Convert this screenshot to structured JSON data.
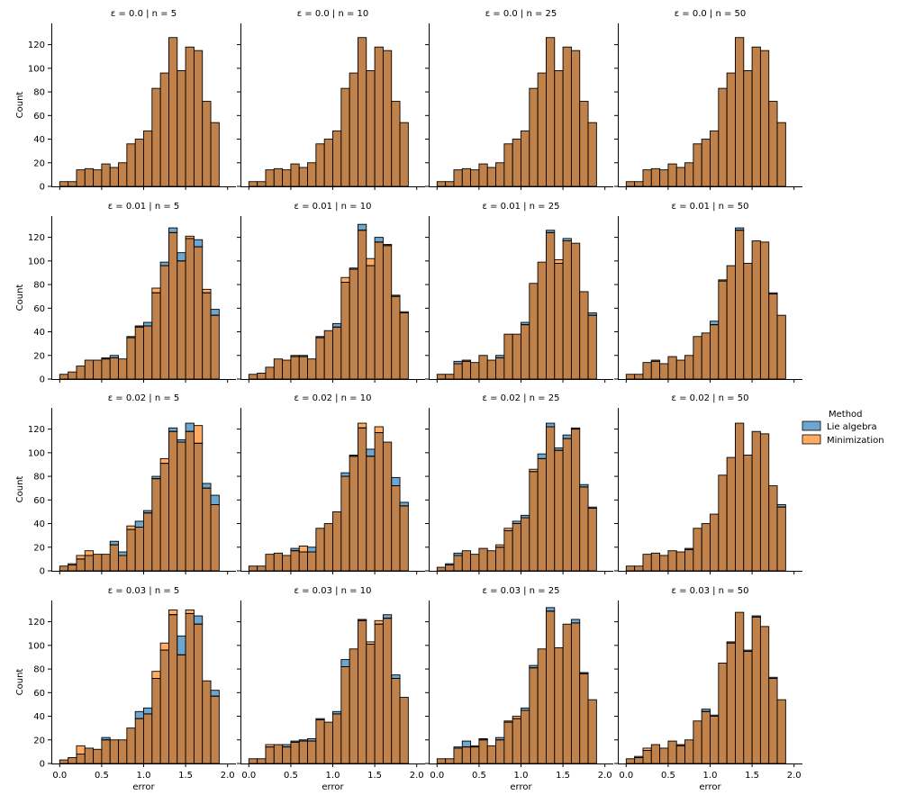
{
  "chart_data": {
    "type": "bar",
    "layout": "facet-grid",
    "rows": 4,
    "cols": 4,
    "xlim": [
      -0.1,
      2.1
    ],
    "ylim": [
      0,
      138
    ],
    "xticks": [
      "0.0",
      "0.5",
      "1.0",
      "1.5",
      "2.0"
    ],
    "yticks": [
      "0",
      "20",
      "40",
      "60",
      "80",
      "100",
      "120"
    ],
    "xtick_values": [
      0,
      0.5,
      1.0,
      1.5,
      2.0
    ],
    "ytick_values": [
      0,
      20,
      40,
      60,
      80,
      100,
      120
    ],
    "xlabel": "error",
    "ylabel": "Count",
    "bins": [
      0.0,
      0.1,
      0.2,
      0.3,
      0.4,
      0.5,
      0.6,
      0.7,
      0.8,
      0.9,
      1.0,
      1.1,
      1.2,
      1.3,
      1.4,
      1.5,
      1.6,
      1.7,
      1.8,
      1.9,
      2.0
    ],
    "legend": {
      "title": "Method",
      "position": "right",
      "items": [
        {
          "label": "Lie algebra",
          "color": "#1f77b4"
        },
        {
          "label": "Minimization",
          "color": "#ff7f0e"
        }
      ]
    },
    "overlap_color": "#c0824a",
    "panels": [
      {
        "title": "ε = 0.0 | n = 5",
        "series": [
          {
            "name": "Lie algebra",
            "values": [
              4,
              4,
              14,
              15,
              14,
              19,
              16,
              20,
              36,
              40,
              47,
              83,
              96,
              126,
              98,
              118,
              115,
              72,
              54
            ]
          },
          {
            "name": "Minimization",
            "values": [
              4,
              4,
              14,
              15,
              14,
              19,
              16,
              20,
              36,
              40,
              47,
              83,
              96,
              126,
              98,
              118,
              115,
              72,
              54
            ]
          }
        ]
      },
      {
        "title": "ε = 0.0 | n = 10",
        "series": [
          {
            "name": "Lie algebra",
            "values": [
              4,
              4,
              14,
              15,
              14,
              19,
              16,
              20,
              36,
              40,
              47,
              83,
              96,
              126,
              98,
              118,
              115,
              72,
              54
            ]
          },
          {
            "name": "Minimization",
            "values": [
              4,
              4,
              14,
              15,
              14,
              19,
              16,
              20,
              36,
              40,
              47,
              83,
              96,
              126,
              98,
              118,
              115,
              72,
              54
            ]
          }
        ]
      },
      {
        "title": "ε = 0.0 | n = 25",
        "series": [
          {
            "name": "Lie algebra",
            "values": [
              4,
              4,
              14,
              15,
              14,
              19,
              16,
              20,
              36,
              40,
              47,
              83,
              96,
              126,
              98,
              118,
              115,
              72,
              54
            ]
          },
          {
            "name": "Minimization",
            "values": [
              4,
              4,
              14,
              15,
              14,
              19,
              16,
              20,
              36,
              40,
              47,
              83,
              96,
              126,
              98,
              118,
              115,
              72,
              54
            ]
          }
        ]
      },
      {
        "title": "ε = 0.0 | n = 50",
        "series": [
          {
            "name": "Lie algebra",
            "values": [
              4,
              4,
              14,
              15,
              14,
              19,
              16,
              20,
              36,
              40,
              47,
              83,
              96,
              126,
              98,
              118,
              115,
              72,
              54
            ]
          },
          {
            "name": "Minimization",
            "values": [
              4,
              4,
              14,
              15,
              14,
              19,
              16,
              20,
              36,
              40,
              47,
              83,
              96,
              126,
              98,
              118,
              115,
              72,
              54
            ]
          }
        ]
      },
      {
        "title": "ε = 0.01 | n = 5",
        "series": [
          {
            "name": "Lie algebra",
            "values": [
              4,
              6,
              11,
              16,
              16,
              17,
              20,
              17,
              36,
              45,
              48,
              73,
              99,
              128,
              107,
              119,
              118,
              73,
              59
            ]
          },
          {
            "name": "Minimization",
            "values": [
              4,
              6,
              11,
              16,
              16,
              18,
              18,
              17,
              35,
              44,
              45,
              77,
              96,
              124,
              100,
              121,
              112,
              76,
              54
            ]
          }
        ]
      },
      {
        "title": "ε = 0.01 | n = 10",
        "series": [
          {
            "name": "Lie algebra",
            "values": [
              4,
              5,
              10,
              17,
              16,
              19,
              20,
              17,
              36,
              41,
              47,
              82,
              94,
              131,
              96,
              120,
              113,
              71,
              57
            ]
          },
          {
            "name": "Minimization",
            "values": [
              4,
              5,
              10,
              17,
              16,
              20,
              19,
              17,
              35,
              41,
              44,
              86,
              93,
              126,
              102,
              116,
              114,
              70,
              56
            ]
          }
        ]
      },
      {
        "title": "ε = 0.01 | n = 25",
        "series": [
          {
            "name": "Lie algebra",
            "values": [
              4,
              4,
              15,
              15,
              14,
              20,
              16,
              20,
              38,
              38,
              48,
              81,
              99,
              126,
              98,
              119,
              115,
              74,
              56
            ]
          },
          {
            "name": "Minimization",
            "values": [
              4,
              4,
              13,
              16,
              14,
              20,
              16,
              18,
              38,
              38,
              46,
              81,
              99,
              124,
              101,
              117,
              115,
              74,
              54
            ]
          }
        ]
      },
      {
        "title": "ε = 0.01 | n = 50",
        "series": [
          {
            "name": "Lie algebra",
            "values": [
              4,
              4,
              14,
              15,
              13,
              19,
              16,
              20,
              36,
              39,
              49,
              83,
              96,
              128,
              98,
              117,
              116,
              73,
              54
            ]
          },
          {
            "name": "Minimization",
            "values": [
              4,
              4,
              14,
              16,
              13,
              19,
              16,
              20,
              36,
              39,
              46,
              84,
              96,
              126,
              98,
              117,
              116,
              72,
              54
            ]
          }
        ]
      },
      {
        "title": "ε = 0.02 | n = 5",
        "series": [
          {
            "name": "Lie algebra",
            "values": [
              4,
              5,
              10,
              13,
              14,
              14,
              25,
              16,
              35,
              42,
              51,
              80,
              91,
              121,
              111,
              125,
              108,
              74,
              64
            ]
          },
          {
            "name": "Minimization",
            "values": [
              4,
              6,
              13,
              17,
              14,
              14,
              22,
              13,
              38,
              37,
              49,
              78,
              95,
              118,
              109,
              118,
              123,
              70,
              56
            ]
          }
        ]
      },
      {
        "title": "ε = 0.02 | n = 10",
        "series": [
          {
            "name": "Lie algebra",
            "values": [
              4,
              4,
              14,
              15,
              13,
              19,
              16,
              20,
              36,
              40,
              50,
              83,
              97,
              121,
              103,
              117,
              109,
              79,
              58
            ]
          },
          {
            "name": "Minimization",
            "values": [
              4,
              4,
              14,
              15,
              13,
              17,
              21,
              16,
              36,
              40,
              50,
              80,
              98,
              125,
              97,
              122,
              109,
              72,
              55
            ]
          }
        ]
      },
      {
        "title": "ε = 0.02 | n = 25",
        "series": [
          {
            "name": "Lie algebra",
            "values": [
              3,
              6,
              15,
              17,
              14,
              19,
              17,
              20,
              34,
              42,
              47,
              84,
              99,
              125,
              104,
              115,
              121,
              73,
              54
            ]
          },
          {
            "name": "Minimization",
            "values": [
              3,
              5,
              13,
              17,
              14,
              19,
              17,
              22,
              36,
              40,
              45,
              86,
              95,
              122,
              102,
              112,
              120,
              71,
              53
            ]
          }
        ]
      },
      {
        "title": "ε = 0.02 | n = 50",
        "series": [
          {
            "name": "Lie algebra",
            "values": [
              4,
              4,
              14,
              15,
              13,
              17,
              16,
              19,
              36,
              40,
              48,
              81,
              96,
              125,
              98,
              118,
              116,
              72,
              56
            ]
          },
          {
            "name": "Minimization",
            "values": [
              4,
              4,
              14,
              15,
              13,
              17,
              16,
              18,
              36,
              40,
              48,
              81,
              96,
              125,
              98,
              118,
              116,
              72,
              54
            ]
          }
        ]
      },
      {
        "title": "ε = 0.03 | n = 5",
        "series": [
          {
            "name": "Lie algebra",
            "values": [
              3,
              5,
              8,
              13,
              12,
              22,
              20,
              20,
              30,
              44,
              47,
              72,
              96,
              126,
              108,
              127,
              125,
              70,
              62
            ]
          },
          {
            "name": "Minimization",
            "values": [
              3,
              5,
              15,
              13,
              12,
              20,
              20,
              20,
              30,
              38,
              42,
              78,
              102,
              130,
              92,
              130,
              118,
              70,
              57
            ]
          }
        ]
      },
      {
        "title": "ε = 0.03 | n = 10",
        "series": [
          {
            "name": "Lie algebra",
            "values": [
              4,
              4,
              14,
              16,
              16,
              19,
              20,
              21,
              38,
              35,
              44,
              88,
              97,
              122,
              101,
              118,
              126,
              75,
              56
            ]
          },
          {
            "name": "Minimization",
            "values": [
              4,
              4,
              16,
              16,
              14,
              18,
              19,
              19,
              37,
              35,
              42,
              82,
              97,
              121,
              103,
              121,
              123,
              72,
              56
            ]
          }
        ]
      },
      {
        "title": "ε = 0.03 | n = 25",
        "series": [
          {
            "name": "Lie algebra",
            "values": [
              4,
              4,
              14,
              19,
              14,
              21,
              15,
              22,
              35,
              38,
              47,
              83,
              97,
              132,
              98,
              118,
              122,
              77,
              54
            ]
          },
          {
            "name": "Minimization",
            "values": [
              4,
              4,
              13,
              14,
              15,
              20,
              15,
              20,
              36,
              40,
              45,
              81,
              97,
              129,
              98,
              118,
              119,
              76,
              54
            ]
          }
        ]
      },
      {
        "title": "ε = 0.03 | n = 50",
        "series": [
          {
            "name": "Lie algebra",
            "values": [
              4,
              6,
              11,
              16,
              13,
              19,
              15,
              20,
              36,
              46,
              41,
              85,
              102,
              128,
              96,
              125,
              116,
              73,
              54
            ]
          },
          {
            "name": "Minimization",
            "values": [
              4,
              5,
              13,
              16,
              13,
              19,
              16,
              20,
              36,
              44,
              40,
              85,
              103,
              128,
              95,
              124,
              116,
              72,
              54
            ]
          }
        ]
      }
    ]
  }
}
